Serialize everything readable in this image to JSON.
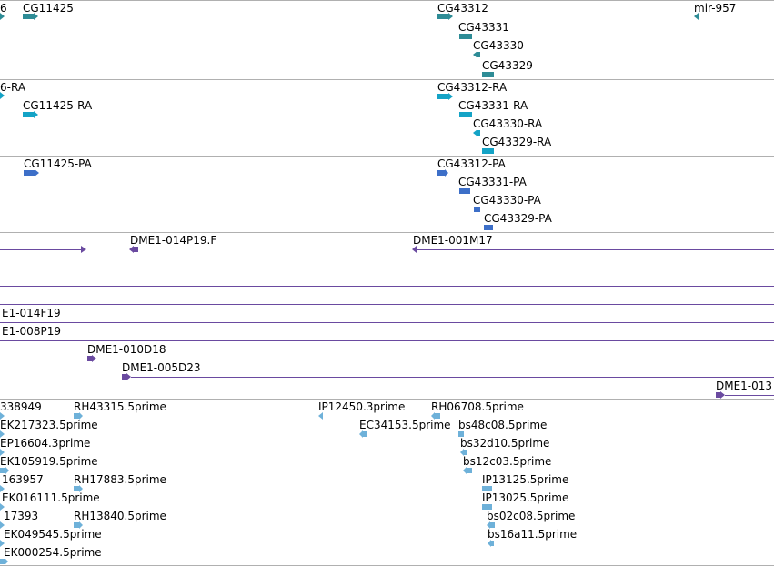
{
  "colors": {
    "gene": "#2e8c96",
    "transcript": "#14a3c6",
    "protein": "#3d6fc8",
    "clone": "#6a4aa0",
    "est": "#6eb1d9",
    "separator": "#b0b0b0"
  },
  "genes": {
    "items": [
      "6",
      "CG11425",
      "CG43312",
      "CG43331",
      "CG43330",
      "CG43329",
      "mir-957"
    ]
  },
  "transcripts": {
    "items": [
      "6-RA",
      "CG11425-RA",
      "CG43312-RA",
      "CG43331-RA",
      "CG43330-RA",
      "CG43329-RA"
    ]
  },
  "proteins": {
    "items": [
      "CG11425-PA",
      "CG43312-PA",
      "CG43331-PA",
      "CG43330-PA",
      "CG43329-PA"
    ]
  },
  "clones": {
    "items": [
      "DME1-014P19.F",
      "DME1-001M17",
      "E1-014F19",
      "E1-008P19",
      "DME1-010D18",
      "DME1-005D23",
      "DME1-013"
    ]
  },
  "ests": {
    "items": [
      "338949",
      "RH43315.5prime",
      "IP12450.3prime",
      "RH06708.5prime",
      "EK217323.5prime",
      "EC34153.5prime",
      "bs48c08.5prime",
      "EP16604.3prime",
      "bs32d10.5prime",
      "EK105919.5prime",
      "bs12c03.5prime",
      "163957",
      "RH17883.5prime",
      "IP13125.5prime",
      "EK016111.5prime",
      "IP13025.5prime",
      "17393",
      "RH13840.5prime",
      "bs02c08.5prime",
      "EK049545.5prime",
      "bs16a11.5prime",
      "EK000254.5prime"
    ]
  }
}
